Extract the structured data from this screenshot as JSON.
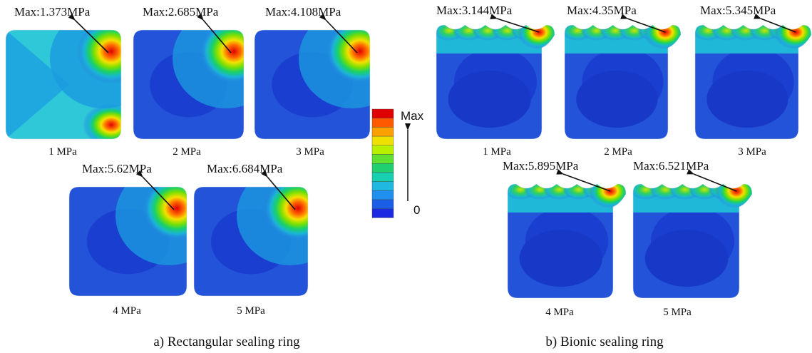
{
  "panels": [
    {
      "caption": "a) Rectangular sealing ring",
      "plots": [
        {
          "max": "Max:1.373MPa",
          "pressure": "1 MPa"
        },
        {
          "max": "Max:2.685MPa",
          "pressure": "2 MPa"
        },
        {
          "max": "Max:4.108MPa",
          "pressure": "3 MPa"
        },
        {
          "max": "Max:5.62MPa",
          "pressure": "4 MPa"
        },
        {
          "max": "Max:6.684MPa",
          "pressure": "5 MPa"
        }
      ]
    },
    {
      "caption": "b) Bionic sealing ring",
      "plots": [
        {
          "max": "Max:3.144MPa",
          "pressure": "1 MPa"
        },
        {
          "max": "Max:4.35MPa",
          "pressure": "2 MPa"
        },
        {
          "max": "Max:5.345MPa",
          "pressure": "3 MPa"
        },
        {
          "max": "Max:5.895MPa",
          "pressure": "4 MPa"
        },
        {
          "max": "Max:6.521MPa",
          "pressure": "5 MPa"
        }
      ]
    }
  ],
  "legend": {
    "top": "Max",
    "bottom": "0"
  }
}
